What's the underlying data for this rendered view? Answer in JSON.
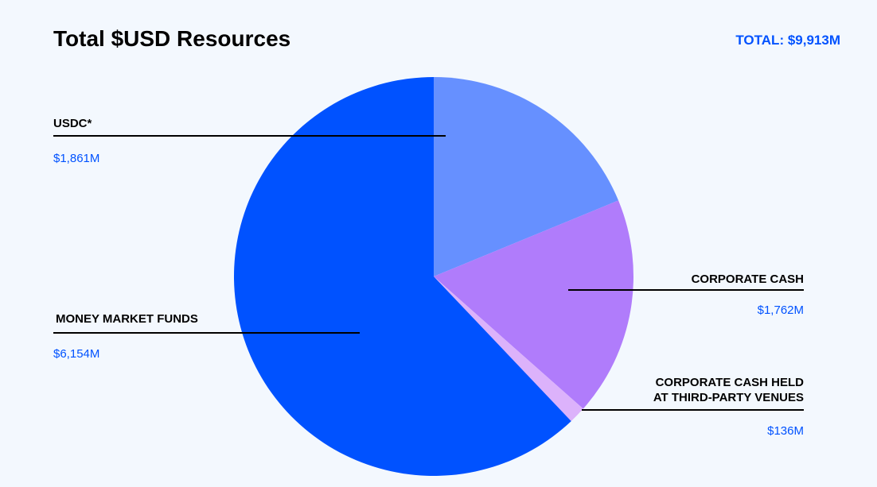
{
  "header": {
    "title": "Total $USD Resources",
    "total": "TOTAL: $9,913M"
  },
  "chart_data": {
    "type": "pie",
    "title": "Total $USD Resources",
    "total_label": "TOTAL: $9,913M",
    "unit": "$M",
    "slices": [
      {
        "label": "USDC*",
        "value": 1861,
        "display": "$1,861M",
        "color": "#6690ff"
      },
      {
        "label": "CORPORATE CASH",
        "value": 1762,
        "display": "$1,762M",
        "color": "#b07cfb"
      },
      {
        "label": "CORPORATE CASH HELD AT THIRD-PARTY VENUES",
        "label_lines": [
          "CORPORATE CASH HELD",
          "AT THIRD-PARTY VENUES"
        ],
        "value": 136,
        "display": "$136M",
        "color": "#dcb2fb"
      },
      {
        "label": "MONEY MARKET FUNDS",
        "value": 6154,
        "display": "$6,154M",
        "color": "#0052ff"
      }
    ]
  }
}
